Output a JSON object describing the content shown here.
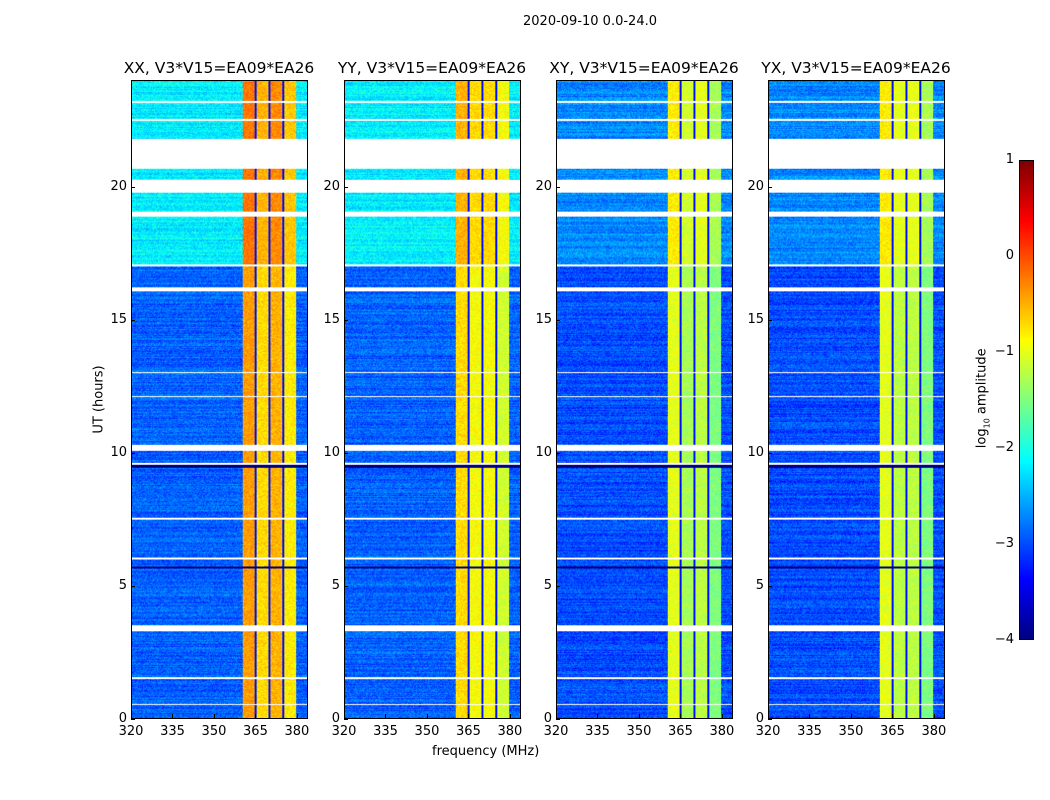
{
  "suptitle": "2020-09-10 0.0-24.0",
  "chart_data": {
    "type": "heatmap",
    "title": "2020-09-10 0.0-24.0",
    "xlabel": "frequency (MHz)",
    "ylabel": "UT (hours)",
    "xlim": [
      320,
      384
    ],
    "ylim": [
      0,
      24
    ],
    "xticks": [
      "320",
      "335",
      "350",
      "365",
      "380"
    ],
    "xtick_values": [
      320,
      335,
      350,
      365,
      380
    ],
    "yticks": [
      "0",
      "5",
      "10",
      "15",
      "20"
    ],
    "ytick_values": [
      0,
      5,
      10,
      15,
      20
    ],
    "colorbar": {
      "label": "log10 amplitude",
      "label_main": "log",
      "label_sub": "10",
      "label_tail": " amplitude",
      "range": [
        -4,
        1
      ],
      "ticks": [
        "−4",
        "−3",
        "−2",
        "−1",
        "0",
        "1"
      ],
      "tick_values": [
        -4,
        -3,
        -2,
        -1,
        0,
        1
      ],
      "colormap": "jet"
    },
    "flagged_hours": [
      [
        20.71,
        21.84
      ],
      [
        19.8,
        20.3
      ],
      [
        18.9,
        19.1
      ],
      [
        17.05,
        17.12
      ],
      [
        16.1,
        16.25
      ],
      [
        10.1,
        10.3
      ],
      [
        9.55,
        9.62
      ],
      [
        3.3,
        3.5
      ],
      [
        22.5,
        22.58
      ],
      [
        23.2,
        23.25
      ],
      [
        13.0,
        13.05
      ],
      [
        12.1,
        12.15
      ],
      [
        7.5,
        7.55
      ],
      [
        6.0,
        6.05
      ],
      [
        1.5,
        1.55
      ],
      [
        0.5,
        0.55
      ]
    ],
    "rfi_band_mhz": [
      360.3,
      379.7
    ],
    "rfi_subband_edges_mhz": [
      360.3,
      365,
      370,
      375,
      379.7
    ],
    "panels": [
      {
        "title": "XX, V3*V15=EA09*EA26",
        "background_low": -2.9,
        "background_high": -2.2,
        "subbands": [
          -0.4,
          -0.7,
          -0.5,
          -0.8
        ]
      },
      {
        "title": "YY, V3*V15=EA09*EA26",
        "background_low": -2.9,
        "background_high": -2.2,
        "subbands": [
          -0.7,
          -0.9,
          -0.9,
          -1.1
        ]
      },
      {
        "title": "XY, V3*V15=EA09*EA26",
        "background_low": -3.0,
        "background_high": -2.7,
        "subbands": [
          -1.0,
          -1.3,
          -1.2,
          -1.5
        ]
      },
      {
        "title": "YX, V3*V15=EA09*EA26",
        "background_low": -3.0,
        "background_high": -2.7,
        "subbands": [
          -1.0,
          -1.2,
          -1.2,
          -1.5
        ]
      }
    ]
  }
}
